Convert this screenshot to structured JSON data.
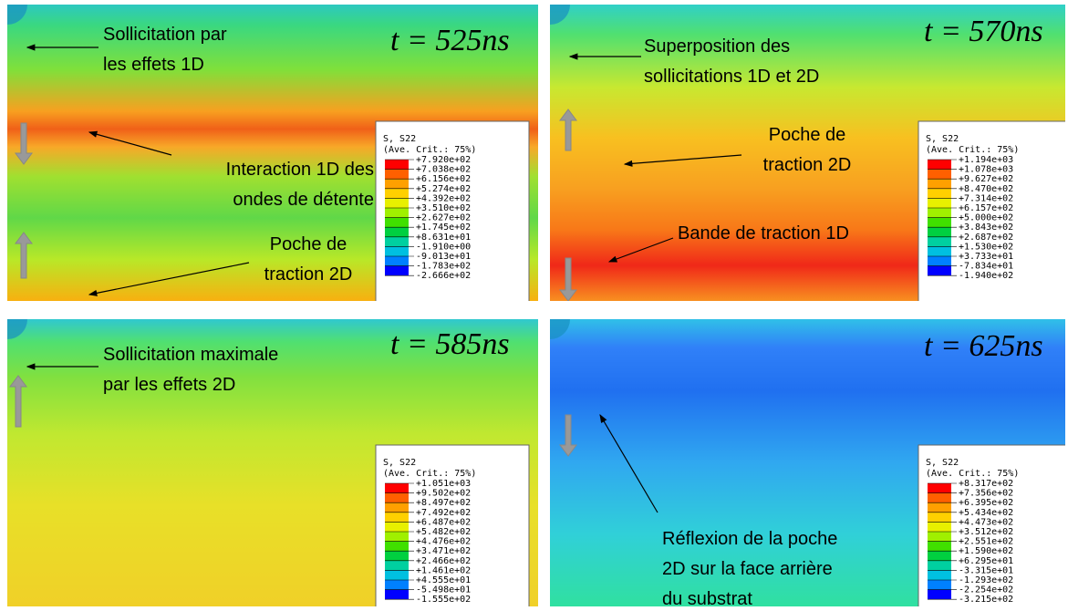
{
  "panels": [
    {
      "time": "t = 525ns",
      "annotations": [
        [
          "Sollicitation par",
          "les effets 1D"
        ],
        [
          "Interaction 1D des",
          "ondes de détente"
        ],
        [
          "Poche de",
          "traction 2D"
        ]
      ],
      "legend": {
        "title": "S, S22",
        "subtitle": "(Ave. Crit.: 75%)",
        "labels": [
          "+7.920e+02",
          "+7.038e+02",
          "+6.156e+02",
          "+5.274e+02",
          "+4.392e+02",
          "+3.510e+02",
          "+2.627e+02",
          "+1.745e+02",
          "+8.631e+01",
          "-1.910e+00",
          "-9.013e+01",
          "-1.783e+02",
          "-2.666e+02"
        ]
      }
    },
    {
      "time": "t = 570ns",
      "annotations": [
        [
          "Superposition des",
          "sollicitations 1D et 2D"
        ],
        [
          "Poche de",
          "traction 2D"
        ],
        [
          "Bande de traction 1D"
        ]
      ],
      "legend": {
        "title": "S, S22",
        "subtitle": "(Ave. Crit.: 75%)",
        "labels": [
          "+1.194e+03",
          "+1.078e+03",
          "+9.627e+02",
          "+8.470e+02",
          "+7.314e+02",
          "+6.157e+02",
          "+5.000e+02",
          "+3.843e+02",
          "+2.687e+02",
          "+1.530e+02",
          "+3.733e+01",
          "-7.834e+01",
          "-1.940e+02"
        ]
      }
    },
    {
      "time": "t = 585ns",
      "annotations": [
        [
          "Sollicitation maximale",
          "par les effets 2D"
        ]
      ],
      "legend": {
        "title": "S, S22",
        "subtitle": "(Ave. Crit.: 75%)",
        "labels": [
          "+1.051e+03",
          "+9.502e+02",
          "+8.497e+02",
          "+7.492e+02",
          "+6.487e+02",
          "+5.482e+02",
          "+4.476e+02",
          "+3.471e+02",
          "+2.466e+02",
          "+1.461e+02",
          "+4.555e+01",
          "-5.498e+01",
          "-1.555e+02"
        ]
      }
    },
    {
      "time": "t = 625ns",
      "annotations": [
        [
          "Réflexion de la poche",
          "2D sur la face arrière",
          "du substrat"
        ]
      ],
      "legend": {
        "title": "S, S22",
        "subtitle": "(Ave. Crit.: 75%)",
        "labels": [
          "+8.317e+02",
          "+7.356e+02",
          "+6.395e+02",
          "+5.434e+02",
          "+4.473e+02",
          "+3.512e+02",
          "+2.551e+02",
          "+1.590e+02",
          "+6.295e+01",
          "-3.315e+01",
          "-1.293e+02",
          "-2.254e+02",
          "-3.215e+02"
        ]
      }
    }
  ],
  "legend_colors": [
    "#ff0000",
    "#ff6000",
    "#ffa000",
    "#ffd000",
    "#e8f000",
    "#a0f000",
    "#40e000",
    "#00d040",
    "#00d0a0",
    "#00c0e0",
    "#0080ff",
    "#0000ff"
  ]
}
